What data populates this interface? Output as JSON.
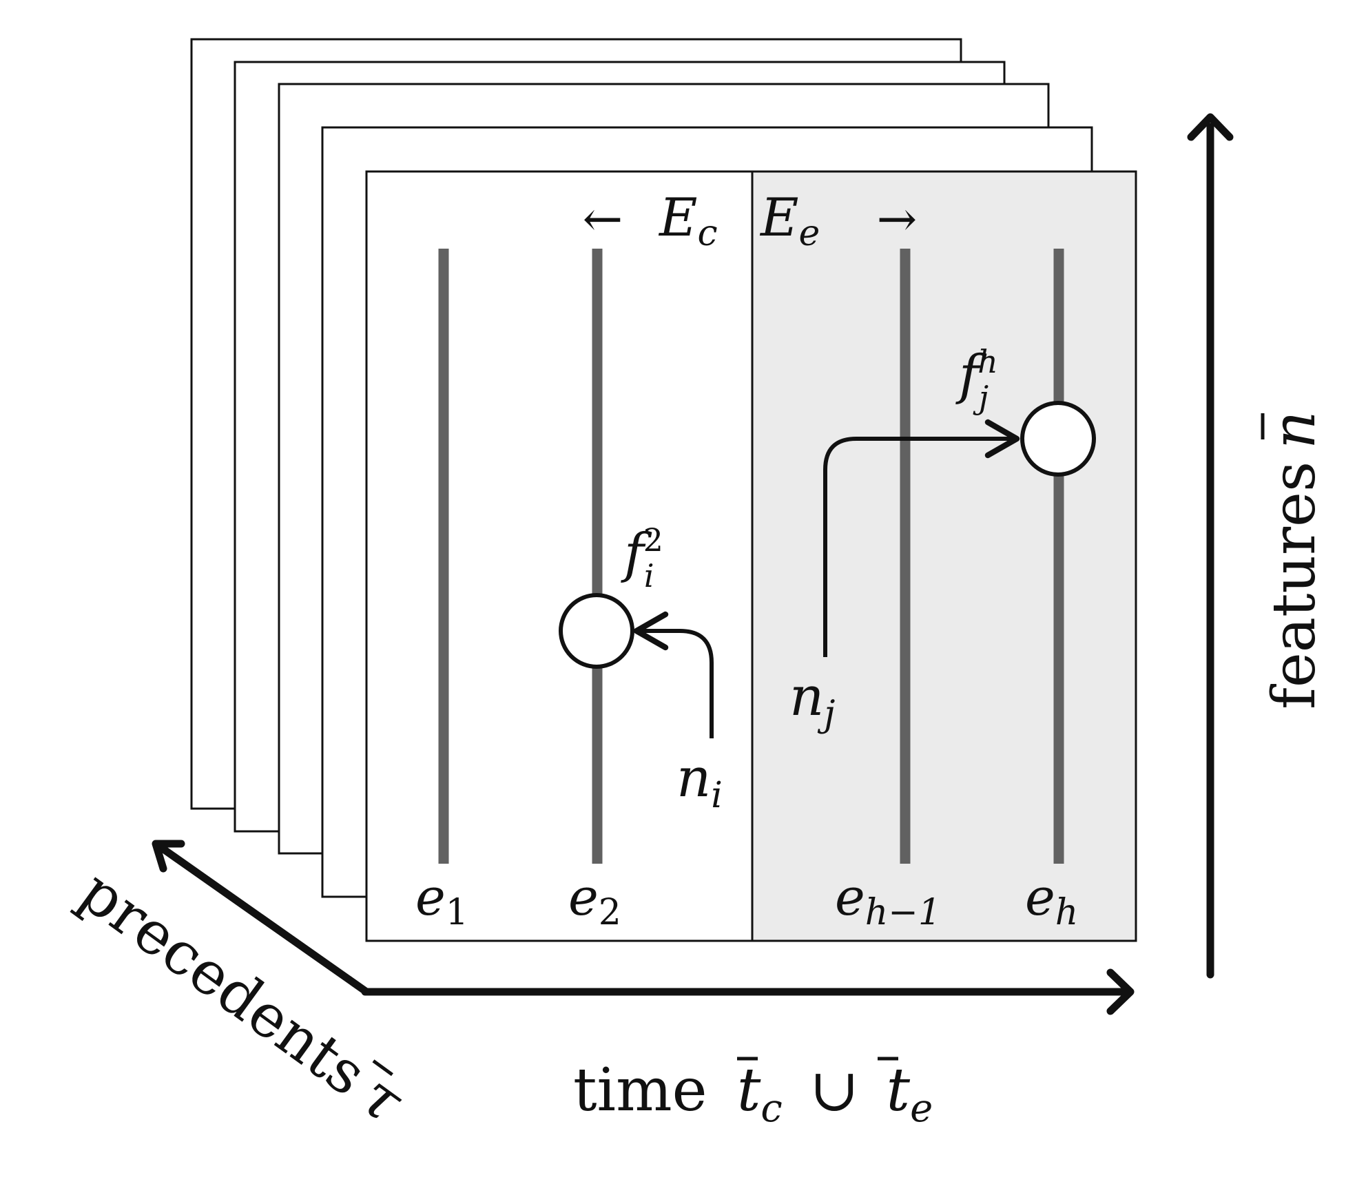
{
  "colors": {
    "ink": "#111111",
    "lane": "#616161",
    "shade": "#ebebeb",
    "paper": "#ffffff"
  },
  "regions": {
    "current": "E",
    "current_sub": "c",
    "future": "E",
    "future_sub": "e",
    "left_arrow": "←",
    "right_arrow": "→"
  },
  "entities": [
    {
      "base": "e",
      "sub": "1"
    },
    {
      "base": "e",
      "sub": "2"
    },
    {
      "base": "e",
      "sub": "h−1"
    },
    {
      "base": "e",
      "sub": "h"
    }
  ],
  "features": [
    {
      "base": "f",
      "sub": "i",
      "sup": "2"
    },
    {
      "base": "f",
      "sub": "j",
      "sup": "h"
    }
  ],
  "nodes": [
    {
      "base": "n",
      "sub": "i"
    },
    {
      "base": "n",
      "sub": "j"
    }
  ],
  "axes": {
    "time": {
      "word": "time",
      "t1": "t",
      "t1_sub": "c",
      "union": "∪",
      "t2": "t",
      "t2_sub": "e"
    },
    "features": {
      "word": "features",
      "symbol": "n"
    },
    "precedents": {
      "word": "precedents",
      "symbol": "τ"
    }
  }
}
